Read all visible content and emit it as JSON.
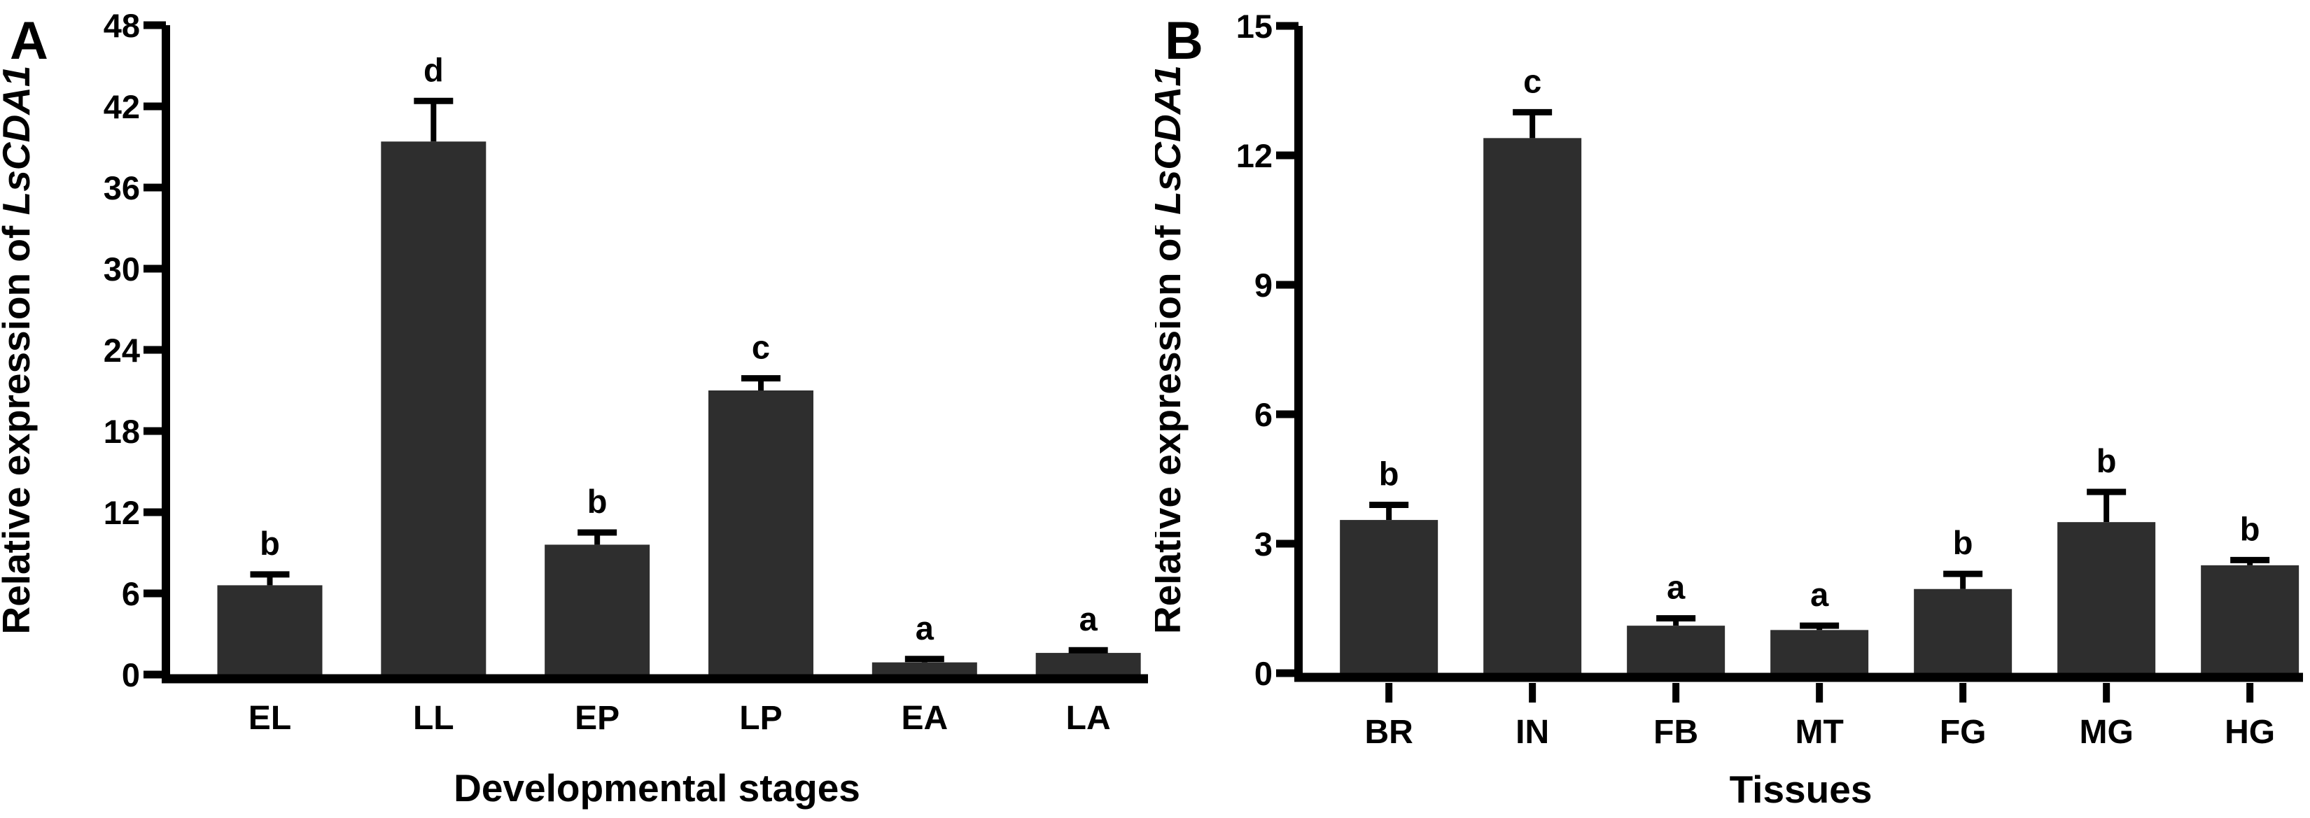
{
  "style": {
    "background": "#ffffff",
    "bar_color": "#2e2e2e",
    "axis_color": "#000000",
    "text_color": "#000000"
  },
  "chart_data": [
    {
      "type": "bar",
      "panel_label": "A",
      "ylabel_regular": "Relative expression of ",
      "ylabel_italic": "LsCDA1",
      "xlabel": "Developmental stages",
      "categories": [
        "EL",
        "LL",
        "EP",
        "LP",
        "EA",
        "LA"
      ],
      "values": [
        6.6,
        39.4,
        9.6,
        21.0,
        0.9,
        1.6
      ],
      "errors": [
        0.8,
        3.0,
        0.9,
        0.9,
        0.25,
        0.2
      ],
      "sig_letters": [
        "b",
        "d",
        "b",
        "c",
        "a",
        "a"
      ],
      "ylim": [
        0,
        48
      ],
      "yticks": [
        0,
        6,
        12,
        18,
        24,
        30,
        36,
        42,
        48
      ],
      "category_ticks_below_axis": false,
      "legend": "none",
      "grid": "off"
    },
    {
      "type": "bar",
      "panel_label": "B",
      "ylabel_regular": "Relative expression of ",
      "ylabel_italic": "LsCDA1",
      "xlabel": "Tissues",
      "categories": [
        "BR",
        "IN",
        "FB",
        "MT",
        "FG",
        "MG",
        "HG"
      ],
      "values": [
        3.55,
        12.4,
        1.1,
        1.0,
        1.95,
        3.5,
        2.5
      ],
      "errors": [
        0.35,
        0.6,
        0.17,
        0.1,
        0.35,
        0.7,
        0.12
      ],
      "sig_letters": [
        "b",
        "c",
        "a",
        "a",
        "b",
        "b",
        "b"
      ],
      "ylim": [
        0,
        15
      ],
      "yticks": [
        0,
        3,
        6,
        9,
        12,
        15
      ],
      "category_ticks_below_axis": true,
      "legend": "none",
      "grid": "off"
    }
  ]
}
